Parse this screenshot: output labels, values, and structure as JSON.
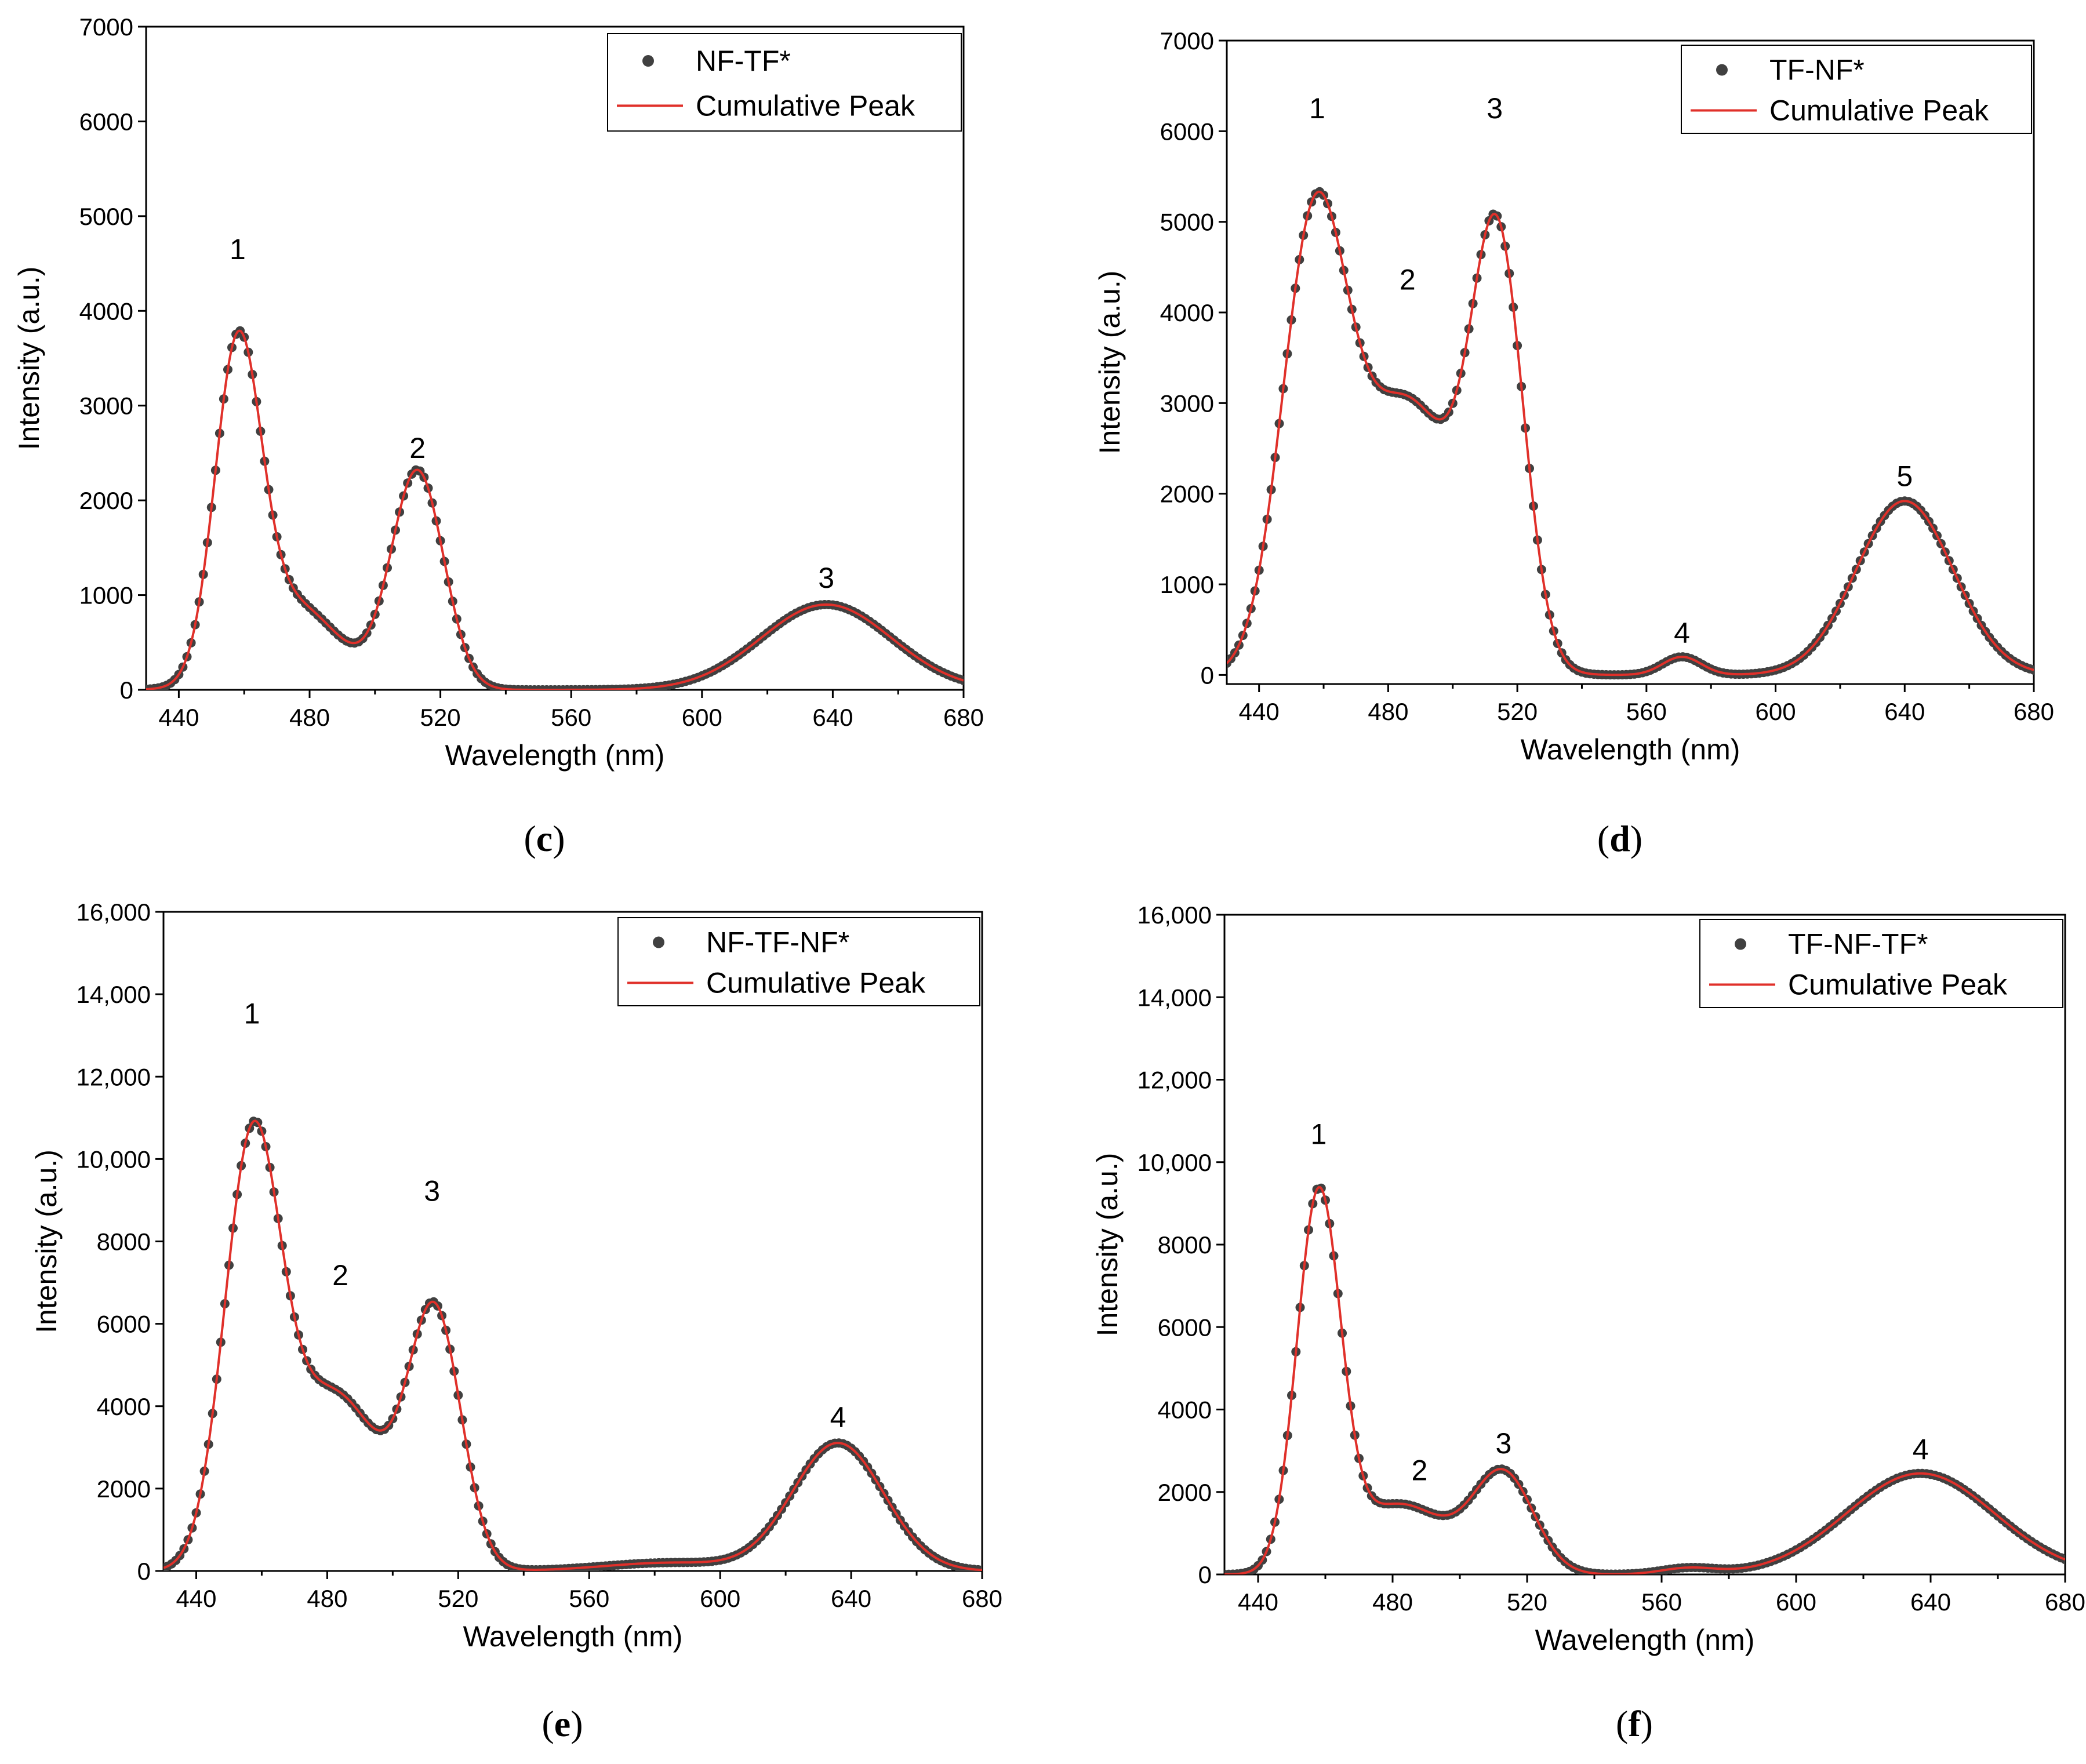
{
  "chart_data": [
    {
      "id": "c",
      "type": "scatter",
      "panel_label": {
        "open": "(",
        "letter": "c",
        "close": ")"
      },
      "xlabel": "Wavelength (nm)",
      "ylabel": "Intensity (a.u.)",
      "xlim": [
        430,
        680
      ],
      "ylim": [
        0,
        7000
      ],
      "xticks": [
        440,
        480,
        520,
        560,
        600,
        640,
        680
      ],
      "xtick_labels": [
        "440",
        "480",
        "520",
        "560",
        "600",
        "640",
        "680"
      ],
      "yticks": [
        0,
        1000,
        2000,
        3000,
        4000,
        5000,
        6000,
        7000
      ],
      "ytick_labels": [
        "0",
        "1000",
        "2000",
        "3000",
        "4000",
        "5000",
        "6000",
        "7000"
      ],
      "legend": {
        "position": "top-right",
        "entries": [
          "NF-TF*",
          "Cumulative Peak"
        ]
      },
      "series": [
        {
          "name": "NF-TF*",
          "kind": "points",
          "color": "#404040"
        },
        {
          "name": "Cumulative Peak",
          "kind": "line",
          "color": "#e0302a"
        }
      ],
      "peaks": [
        {
          "center": 458,
          "amplitude": 3350,
          "width": 7
        },
        {
          "center": 475,
          "amplitude": 900,
          "width": 14
        },
        {
          "center": 513,
          "amplitude": 2300,
          "width": 8
        },
        {
          "center": 638,
          "amplitude": 900,
          "width": 20
        }
      ],
      "peak_labels": [
        {
          "text": "1",
          "x": 458,
          "y": 4400
        },
        {
          "text": "2",
          "x": 513,
          "y": 2300
        },
        {
          "text": "3",
          "x": 638,
          "y": 930
        }
      ]
    },
    {
      "id": "d",
      "type": "scatter",
      "panel_label": {
        "open": "(",
        "letter": "d",
        "close": ")"
      },
      "xlabel": "Wavelength (nm)",
      "ylabel": "Intensity (a.u.)",
      "xlim": [
        430,
        680
      ],
      "ylim": [
        -100,
        7000
      ],
      "xticks": [
        440,
        480,
        520,
        560,
        600,
        640,
        680
      ],
      "xtick_labels": [
        "440",
        "480",
        "520",
        "560",
        "600",
        "640",
        "680"
      ],
      "yticks": [
        0,
        1000,
        2000,
        3000,
        4000,
        5000,
        6000,
        7000
      ],
      "ytick_labels": [
        "0",
        "1000",
        "2000",
        "3000",
        "4000",
        "5000",
        "6000",
        "7000"
      ],
      "legend": {
        "position": "top-right",
        "entries": [
          "TF-NF*",
          "Cumulative Peak"
        ]
      },
      "series": [
        {
          "name": "TF-NF*",
          "kind": "points",
          "color": "#404040"
        },
        {
          "name": "Cumulative Peak",
          "kind": "line",
          "color": "#e0302a"
        }
      ],
      "peaks": [
        {
          "center": 457,
          "amplitude": 4700,
          "width": 10
        },
        {
          "center": 486,
          "amplitude": 3000,
          "width": 16
        },
        {
          "center": 514,
          "amplitude": 4400,
          "width": 8
        },
        {
          "center": 571,
          "amplitude": 200,
          "width": 6
        },
        {
          "center": 640,
          "amplitude": 1920,
          "width": 15
        }
      ],
      "peak_labels": [
        {
          "text": "1",
          "x": 458,
          "y": 5990
        },
        {
          "text": "2",
          "x": 486,
          "y": 4100
        },
        {
          "text": "3",
          "x": 513,
          "y": 5990
        },
        {
          "text": "4",
          "x": 571,
          "y": 200
        },
        {
          "text": "5",
          "x": 640,
          "y": 1930
        }
      ]
    },
    {
      "id": "e",
      "type": "scatter",
      "panel_label": {
        "open": "(",
        "letter": "e",
        "close": ")"
      },
      "xlabel": "Wavelength (nm)",
      "ylabel": "Intensity (a.u.)",
      "xlim": [
        430,
        680
      ],
      "ylim": [
        0,
        16000
      ],
      "xticks": [
        440,
        480,
        520,
        560,
        600,
        640,
        680
      ],
      "xtick_labels": [
        "440",
        "480",
        "520",
        "560",
        "600",
        "640",
        "680"
      ],
      "yticks": [
        0,
        2000,
        4000,
        6000,
        8000,
        10000,
        12000,
        14000,
        16000
      ],
      "ytick_labels": [
        "0",
        "2000",
        "4000",
        "6000",
        "8000",
        "10,000",
        "12,000",
        "14,000",
        "16,000"
      ],
      "legend": {
        "position": "top-right",
        "entries": [
          "NF-TF-NF*",
          "Cumulative Peak"
        ]
      },
      "series": [
        {
          "name": "NF-TF-NF*",
          "kind": "points",
          "color": "#404040"
        },
        {
          "name": "Cumulative Peak",
          "kind": "line",
          "color": "#e0302a"
        }
      ],
      "peaks": [
        {
          "center": 457,
          "amplitude": 9800,
          "width": 8.5
        },
        {
          "center": 482,
          "amplitude": 4300,
          "width": 15
        },
        {
          "center": 513,
          "amplitude": 6000,
          "width": 8
        },
        {
          "center": 585,
          "amplitude": 200,
          "width": 20
        },
        {
          "center": 636,
          "amplitude": 3100,
          "width": 14
        }
      ],
      "peak_labels": [
        {
          "text": "1",
          "x": 457,
          "y": 12950
        },
        {
          "text": "2",
          "x": 484,
          "y": 6600
        },
        {
          "text": "3",
          "x": 512,
          "y": 8650
        },
        {
          "text": "4",
          "x": 636,
          "y": 3150
        }
      ]
    },
    {
      "id": "f",
      "type": "scatter",
      "panel_label": {
        "open": "(",
        "letter": "f",
        "close": ")"
      },
      "xlabel": "Wavelength (nm)",
      "ylabel": "Intensity (a.u.)",
      "xlim": [
        430,
        680
      ],
      "ylim": [
        0,
        16000
      ],
      "xticks": [
        440,
        480,
        520,
        560,
        600,
        640,
        680
      ],
      "xtick_labels": [
        "440",
        "480",
        "520",
        "560",
        "600",
        "640",
        "680"
      ],
      "yticks": [
        0,
        2000,
        4000,
        6000,
        8000,
        10000,
        12000,
        14000,
        16000
      ],
      "ytick_labels": [
        "0",
        "2000",
        "4000",
        "6000",
        "8000",
        "10,000",
        "12,000",
        "14,000",
        "16,000"
      ],
      "legend": {
        "position": "top-right",
        "entries": [
          "TF-NF-TF*",
          "Cumulative Peak"
        ]
      },
      "series": [
        {
          "name": "TF-NF-TF*",
          "kind": "points",
          "color": "#404040"
        },
        {
          "name": "Cumulative Peak",
          "kind": "line",
          "color": "#e0302a"
        }
      ],
      "peaks": [
        {
          "center": 458,
          "amplitude": 9000,
          "width": 6.5
        },
        {
          "center": 482,
          "amplitude": 1700,
          "width": 14
        },
        {
          "center": 513,
          "amplitude": 2400,
          "width": 9
        },
        {
          "center": 568,
          "amplitude": 150,
          "width": 8
        },
        {
          "center": 637,
          "amplitude": 2450,
          "width": 22
        }
      ],
      "peak_labels": [
        {
          "text": "1",
          "x": 458,
          "y": 10100
        },
        {
          "text": "2",
          "x": 488,
          "y": 1950
        },
        {
          "text": "3",
          "x": 513,
          "y": 2600
        },
        {
          "text": "4",
          "x": 637,
          "y": 2450
        }
      ]
    }
  ]
}
